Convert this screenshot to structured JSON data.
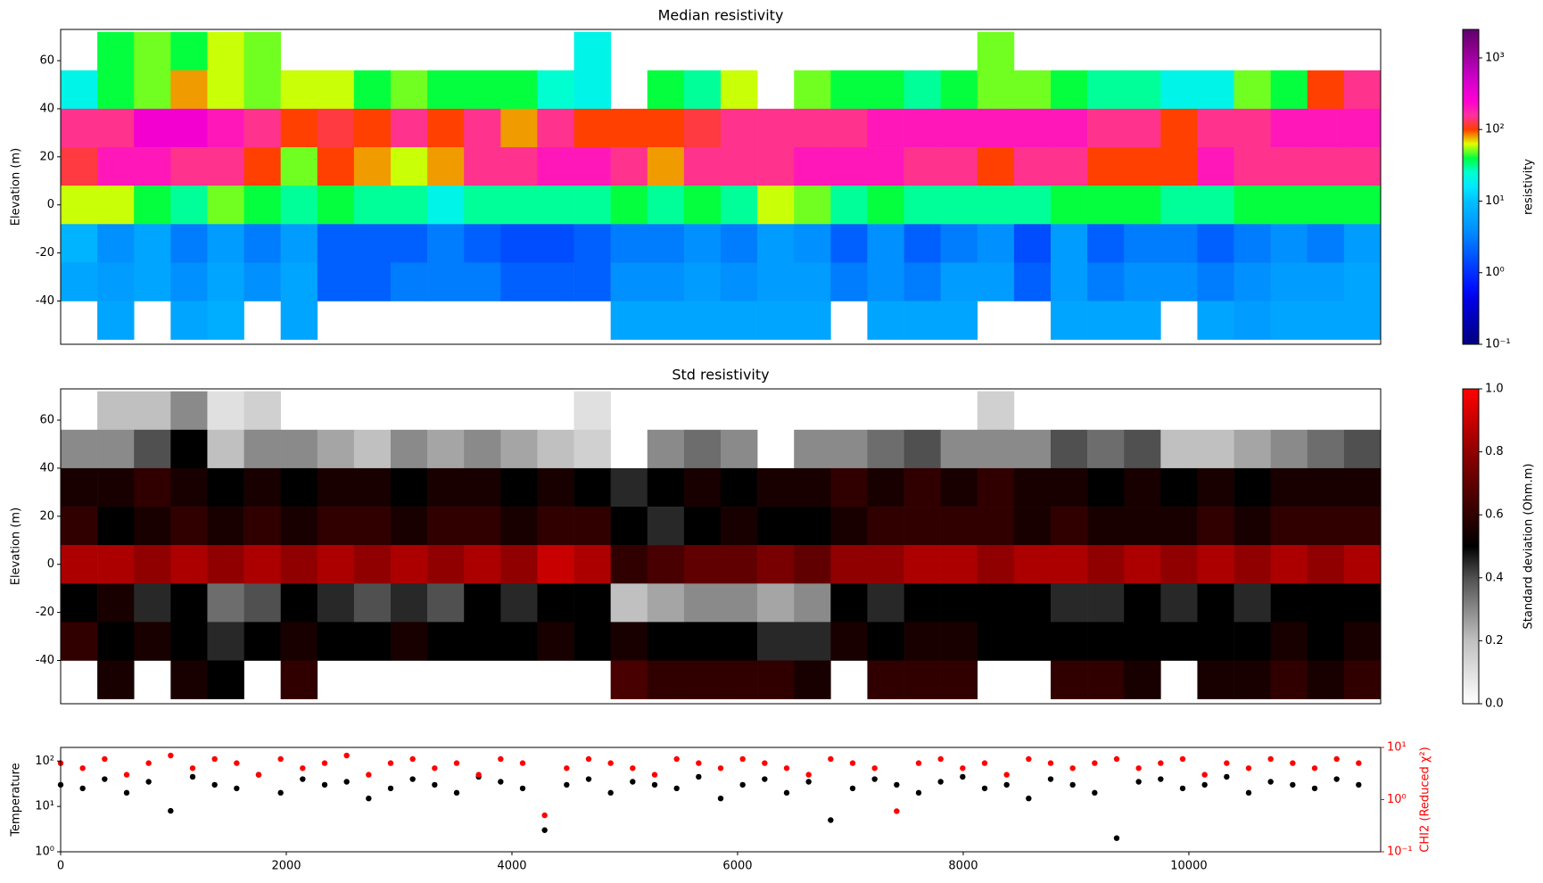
{
  "chart_data": [
    {
      "type": "section",
      "title": "Median resistivity",
      "ylabel": "Elevation (m)",
      "x": [
        0,
        325,
        650,
        975,
        1300,
        1625,
        1950,
        2275,
        2600,
        2925,
        3250,
        3575,
        3900,
        4225,
        4550,
        4875,
        5200,
        5525,
        5850,
        6175,
        6500,
        6825,
        7150,
        7475,
        7800,
        8125,
        8450,
        8775,
        9100,
        9425,
        9750,
        10075,
        10400,
        10725,
        11050,
        11375
      ],
      "elevation_edges": [
        72,
        56,
        40,
        24,
        8,
        -8,
        -24,
        -40,
        -56
      ],
      "values": [
        [
          null,
          20,
          150,
          120,
          60,
          8,
          6,
          null
        ],
        [
          40,
          40,
          150,
          200,
          60,
          4,
          5,
          6
        ],
        [
          50,
          50,
          300,
          200,
          40,
          6,
          6,
          null
        ],
        [
          40,
          80,
          300,
          150,
          30,
          3,
          4,
          6
        ],
        [
          60,
          60,
          200,
          150,
          50,
          5,
          6,
          7
        ],
        [
          50,
          50,
          150,
          100,
          40,
          3,
          4,
          null
        ],
        [
          null,
          60,
          100,
          50,
          30,
          5,
          6,
          6
        ],
        [
          null,
          60,
          120,
          100,
          40,
          2,
          2,
          null
        ],
        [
          null,
          40,
          100,
          80,
          30,
          2,
          2,
          null
        ],
        [
          null,
          50,
          150,
          60,
          30,
          2,
          3,
          null
        ],
        [
          null,
          40,
          100,
          80,
          20,
          3,
          3,
          null
        ],
        [
          null,
          40,
          150,
          150,
          30,
          2,
          3,
          null
        ],
        [
          null,
          40,
          80,
          150,
          30,
          1.5,
          2,
          null
        ],
        [
          null,
          25,
          150,
          200,
          30,
          1.5,
          2,
          null
        ],
        [
          20,
          20,
          100,
          200,
          30,
          2,
          2,
          null
        ],
        [
          null,
          null,
          100,
          150,
          40,
          3,
          4,
          6
        ],
        [
          null,
          40,
          100,
          80,
          30,
          3,
          4,
          6
        ],
        [
          null,
          30,
          120,
          150,
          40,
          4,
          5,
          6
        ],
        [
          null,
          60,
          150,
          150,
          30,
          3,
          4,
          6
        ],
        [
          null,
          null,
          150,
          150,
          60,
          5,
          5,
          6
        ],
        [
          null,
          50,
          150,
          200,
          50,
          4,
          5,
          6
        ],
        [
          null,
          40,
          150,
          200,
          30,
          2,
          3,
          null
        ],
        [
          null,
          40,
          200,
          200,
          40,
          4,
          4,
          6
        ],
        [
          null,
          30,
          200,
          150,
          30,
          2,
          3,
          6
        ],
        [
          null,
          40,
          200,
          150,
          30,
          3,
          5,
          6
        ],
        [
          50,
          50,
          200,
          100,
          30,
          4,
          5,
          null
        ],
        [
          null,
          50,
          200,
          150,
          30,
          1.5,
          2,
          null
        ],
        [
          null,
          40,
          200,
          150,
          40,
          5,
          5,
          6
        ],
        [
          null,
          30,
          150,
          100,
          40,
          2,
          3,
          6
        ],
        [
          null,
          30,
          150,
          100,
          40,
          3,
          4,
          6
        ],
        [
          null,
          20,
          100,
          100,
          30,
          3,
          4,
          null
        ],
        [
          null,
          20,
          150,
          200,
          30,
          2,
          3,
          6
        ],
        [
          null,
          50,
          150,
          150,
          40,
          3,
          4,
          5
        ],
        [
          null,
          40,
          200,
          150,
          40,
          4,
          5,
          6
        ],
        [
          null,
          100,
          200,
          150,
          40,
          3,
          5,
          6
        ],
        [
          null,
          150,
          200,
          150,
          40,
          5,
          6,
          6
        ]
      ],
      "xlim": [
        0,
        11700
      ],
      "ylim": [
        -58,
        73
      ],
      "yticks": [
        -40,
        -20,
        0,
        20,
        40,
        60
      ],
      "colorbar": {
        "label": "resistivity",
        "log": true,
        "lim": [
          0.1,
          2500
        ],
        "ticks": [
          {
            "value": 0.1,
            "label": "10⁻¹"
          },
          {
            "value": 1,
            "label": "10⁰"
          },
          {
            "value": 10,
            "label": "10¹"
          },
          {
            "value": 100,
            "label": "10²"
          },
          {
            "value": 1000,
            "label": "10³"
          }
        ],
        "colors": [
          "#00007f",
          "#00009f",
          "#0000c0",
          "#0000e0",
          "#0010ff",
          "#0030ff",
          "#0050ff",
          "#0070ff",
          "#0090ff",
          "#00a8ff",
          "#00c0ff",
          "#00e8ff",
          "#00ffd0",
          "#00ff40",
          "#e0ff00",
          "#ff4000",
          "#ff30a0",
          "#ff00d0",
          "#e000d0",
          "#c000c0",
          "#a000a0",
          "#800080",
          "#600070"
        ]
      }
    },
    {
      "type": "section",
      "title": "Std resistivity",
      "ylabel": "Elevation (m)",
      "x": [
        0,
        325,
        650,
        975,
        1300,
        1625,
        1950,
        2275,
        2600,
        2925,
        3250,
        3575,
        3900,
        4225,
        4550,
        4875,
        5200,
        5525,
        5850,
        6175,
        6500,
        6825,
        7150,
        7475,
        7800,
        8125,
        8450,
        8775,
        9100,
        9425,
        9750,
        10075,
        10400,
        10725,
        11050,
        11375
      ],
      "elevation_edges": [
        72,
        56,
        40,
        24,
        8,
        -8,
        -24,
        -40,
        -56
      ],
      "values": [
        [
          null,
          0.3,
          0.55,
          0.6,
          0.85,
          0.5,
          0.6,
          null
        ],
        [
          0.2,
          0.3,
          0.55,
          0.5,
          0.85,
          0.55,
          0.5,
          0.55
        ],
        [
          0.2,
          0.4,
          0.6,
          0.55,
          0.8,
          0.45,
          0.55,
          null
        ],
        [
          0.3,
          0.5,
          0.55,
          0.6,
          0.85,
          0.5,
          0.5,
          0.55
        ],
        [
          0.1,
          0.2,
          0.5,
          0.55,
          0.8,
          0.35,
          0.45,
          0.5
        ],
        [
          0.15,
          0.3,
          0.55,
          0.6,
          0.85,
          0.4,
          0.5,
          null
        ],
        [
          null,
          0.3,
          0.5,
          0.55,
          0.8,
          0.5,
          0.55,
          0.6
        ],
        [
          null,
          0.25,
          0.55,
          0.6,
          0.85,
          0.45,
          0.5,
          null
        ],
        [
          null,
          0.2,
          0.55,
          0.6,
          0.8,
          0.4,
          0.5,
          null
        ],
        [
          null,
          0.3,
          0.5,
          0.55,
          0.85,
          0.45,
          0.55,
          null
        ],
        [
          null,
          0.25,
          0.55,
          0.6,
          0.8,
          0.4,
          0.5,
          null
        ],
        [
          null,
          0.3,
          0.55,
          0.6,
          0.85,
          0.5,
          0.5,
          null
        ],
        [
          null,
          0.25,
          0.5,
          0.55,
          0.8,
          0.45,
          0.5,
          null
        ],
        [
          null,
          0.2,
          0.55,
          0.6,
          0.9,
          0.5,
          0.55,
          null
        ],
        [
          0.1,
          0.15,
          0.5,
          0.6,
          0.85,
          0.5,
          0.5,
          null
        ],
        [
          null,
          null,
          0.45,
          0.5,
          0.6,
          0.2,
          0.55,
          0.65
        ],
        [
          null,
          0.3,
          0.5,
          0.45,
          0.65,
          0.25,
          0.5,
          0.6
        ],
        [
          null,
          0.35,
          0.55,
          0.5,
          0.7,
          0.3,
          0.5,
          0.6
        ],
        [
          null,
          0.3,
          0.5,
          0.55,
          0.7,
          0.3,
          0.5,
          0.6
        ],
        [
          null,
          null,
          0.55,
          0.5,
          0.75,
          0.25,
          0.45,
          0.6
        ],
        [
          null,
          0.3,
          0.55,
          0.5,
          0.7,
          0.3,
          0.45,
          0.55
        ],
        [
          null,
          0.3,
          0.6,
          0.55,
          0.8,
          0.5,
          0.55,
          null
        ],
        [
          null,
          0.35,
          0.55,
          0.6,
          0.8,
          0.45,
          0.5,
          0.6
        ],
        [
          null,
          0.4,
          0.6,
          0.6,
          0.85,
          0.5,
          0.55,
          0.6
        ],
        [
          null,
          0.3,
          0.55,
          0.6,
          0.85,
          0.5,
          0.55,
          0.6
        ],
        [
          0.15,
          0.3,
          0.6,
          0.6,
          0.8,
          0.5,
          0.5,
          null
        ],
        [
          null,
          0.3,
          0.55,
          0.55,
          0.85,
          0.5,
          0.5,
          null
        ],
        [
          null,
          0.4,
          0.55,
          0.6,
          0.85,
          0.45,
          0.5,
          0.6
        ],
        [
          null,
          0.35,
          0.5,
          0.55,
          0.8,
          0.45,
          0.5,
          0.6
        ],
        [
          null,
          0.4,
          0.55,
          0.55,
          0.85,
          0.5,
          0.5,
          0.55
        ],
        [
          null,
          0.2,
          0.5,
          0.55,
          0.8,
          0.45,
          0.5,
          null
        ],
        [
          null,
          0.2,
          0.55,
          0.6,
          0.85,
          0.5,
          0.5,
          0.55
        ],
        [
          null,
          0.25,
          0.5,
          0.55,
          0.8,
          0.45,
          0.5,
          0.55
        ],
        [
          null,
          0.3,
          0.55,
          0.6,
          0.85,
          0.5,
          0.55,
          0.6
        ],
        [
          null,
          0.35,
          0.55,
          0.6,
          0.8,
          0.5,
          0.5,
          0.55
        ],
        [
          null,
          0.4,
          0.55,
          0.6,
          0.85,
          0.5,
          0.55,
          0.6
        ]
      ],
      "xlim": [
        0,
        11700
      ],
      "ylim": [
        -58,
        73
      ],
      "yticks": [
        -40,
        -20,
        0,
        20,
        40,
        60
      ],
      "colorbar": {
        "label": "Standard deviation (Ohm.m)",
        "log": false,
        "lim": [
          0,
          1
        ],
        "ticks": [
          {
            "value": 0,
            "label": "0.0"
          },
          0.2,
          0.4,
          0.6,
          0.8,
          {
            "value": 1,
            "label": "1.0"
          }
        ],
        "colors": [
          "#ffffff",
          "#e0e0e0",
          "#c0c0c0",
          "#8a8a8a",
          "#505050",
          "#000000",
          "#300000",
          "#600000",
          "#900000",
          "#c80000",
          "#ff0000"
        ]
      }
    },
    {
      "type": "scatter",
      "x": [
        0,
        195,
        390,
        585,
        780,
        975,
        1170,
        1365,
        1560,
        1755,
        1950,
        2145,
        2340,
        2535,
        2730,
        2925,
        3120,
        3315,
        3510,
        3705,
        3900,
        4095,
        4290,
        4485,
        4680,
        4875,
        5070,
        5265,
        5460,
        5655,
        5850,
        6045,
        6240,
        6435,
        6630,
        6825,
        7020,
        7215,
        7410,
        7605,
        7800,
        7995,
        8190,
        8385,
        8580,
        8775,
        8970,
        9165,
        9360,
        9555,
        9750,
        9945,
        10140,
        10335,
        10530,
        10725,
        10920,
        11115,
        11310,
        11505
      ],
      "series": [
        {
          "name": "Temperature",
          "color": "#000000",
          "values": [
            30,
            25,
            40,
            20,
            35,
            8,
            45,
            30,
            25,
            50,
            20,
            40,
            30,
            35,
            15,
            25,
            40,
            30,
            20,
            45,
            35,
            25,
            3,
            30,
            40,
            20,
            35,
            30,
            25,
            45,
            15,
            30,
            40,
            20,
            35,
            5,
            25,
            40,
            30,
            20,
            35,
            45,
            25,
            30,
            15,
            40,
            30,
            20,
            2,
            35,
            40,
            25,
            30,
            45,
            20,
            35,
            30,
            25,
            40,
            30
          ]
        },
        {
          "name": "CHI2 (Reduced χ²)",
          "color": "#ff0000",
          "axis": "y2",
          "values": [
            5,
            4,
            6,
            3,
            5,
            7,
            4,
            6,
            5,
            3,
            6,
            4,
            5,
            7,
            3,
            5,
            6,
            4,
            5,
            3,
            6,
            5,
            0.5,
            4,
            6,
            5,
            4,
            3,
            6,
            5,
            4,
            6,
            5,
            4,
            3,
            6,
            5,
            4,
            0.6,
            5,
            6,
            4,
            5,
            3,
            6,
            5,
            4,
            5,
            6,
            4,
            5,
            6,
            3,
            5,
            4,
            6,
            5,
            4,
            6,
            5
          ]
        }
      ],
      "xlim": [
        0,
        11700
      ],
      "xticks": [
        0,
        2000,
        4000,
        6000,
        8000,
        10000
      ],
      "ylog": true,
      "ylim": [
        1,
        200
      ],
      "yticks": [
        {
          "value": 1,
          "label": "10⁰"
        },
        {
          "value": 10,
          "label": "10¹"
        },
        {
          "value": 100,
          "label": "10²"
        }
      ],
      "y2lim": [
        0.1,
        10
      ],
      "y2ticks": [
        {
          "value": 0.1,
          "label": "10⁻¹"
        },
        {
          "value": 1,
          "label": "10⁰"
        },
        {
          "value": 10,
          "label": "10¹"
        }
      ]
    }
  ]
}
